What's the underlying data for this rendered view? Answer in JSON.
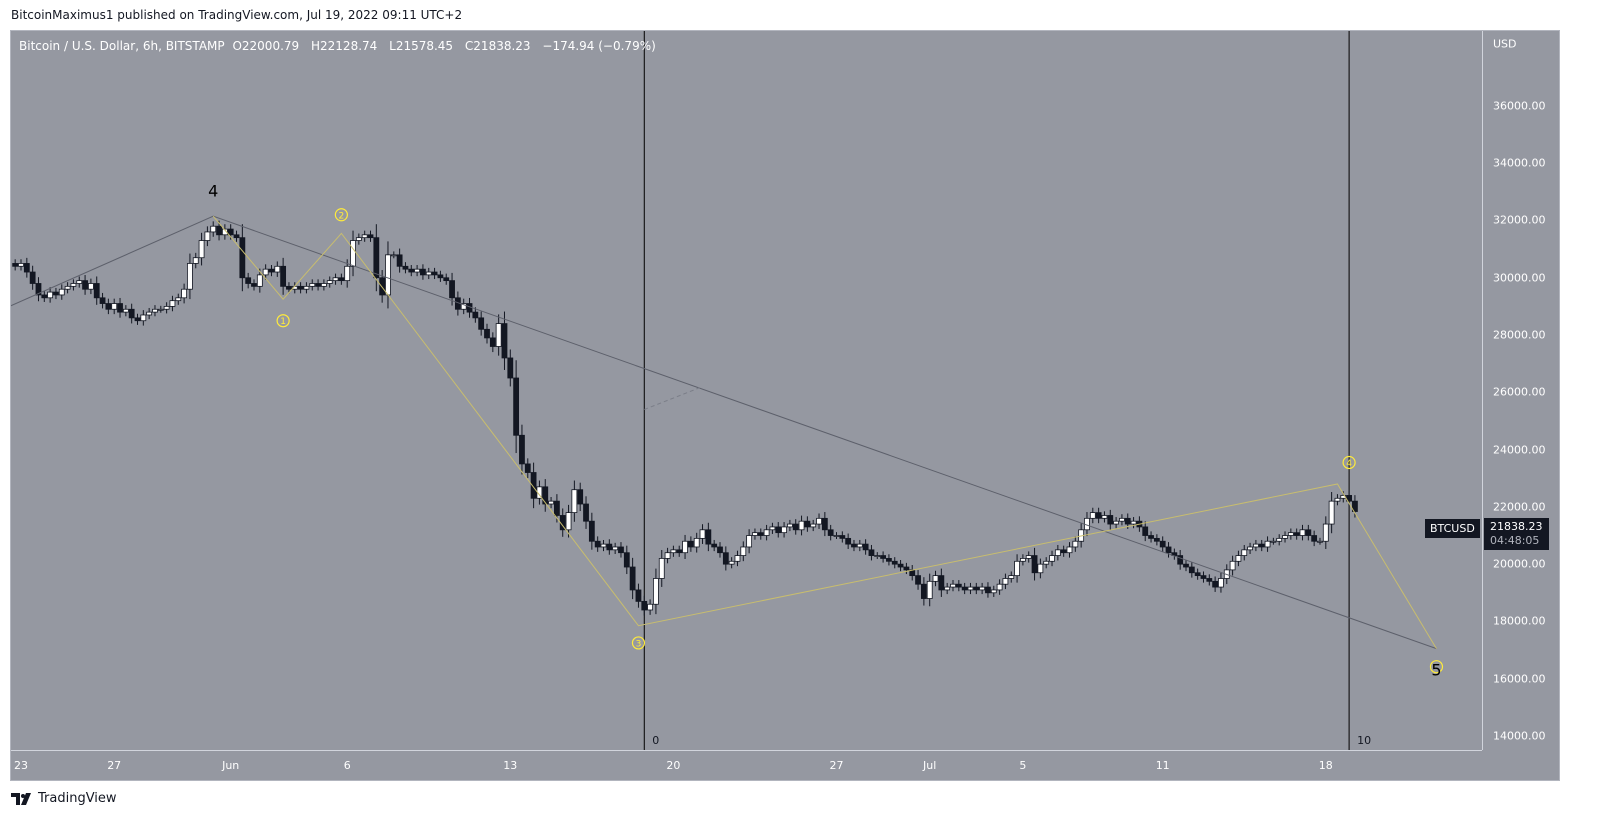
{
  "publisher_line": "BitcoinMaximus1 published on TradingView.com, Jul 19, 2022 09:11 UTC+2",
  "legend": {
    "symbol": "Bitcoin / U.S. Dollar, 6h, BITSTAMP",
    "o_label": "O",
    "open": "22000.79",
    "h_label": "H",
    "high": "22128.74",
    "l_label": "L",
    "low": "21578.45",
    "c_label": "C",
    "close": "21838.23",
    "change": "−174.94 (−0.79%)"
  },
  "price_axis": {
    "currency": "USD",
    "ticks": [
      "36000.00",
      "34000.00",
      "32000.00",
      "30000.00",
      "28000.00",
      "26000.00",
      "24000.00",
      "22000.00",
      "20000.00",
      "18000.00",
      "16000.00",
      "14000.00"
    ]
  },
  "last_price": {
    "symbol": "BTCUSD",
    "price": "21838.23",
    "countdown": "04:48:05"
  },
  "footer": {
    "brand": "TradingView"
  },
  "colors": {
    "background": "#9598a1",
    "up": "#ffffff",
    "down": "#131722",
    "wave_line": "#c8bd6e",
    "trend_line": "#5d606b",
    "wave_label": "#ffeb3b"
  },
  "chart_data": {
    "type": "candlestick",
    "interval": "6h",
    "start": "2022-05-22 18:00",
    "ylim": [
      14000,
      37000
    ],
    "grid": false,
    "x_ticks": [
      {
        "label": "23",
        "date": "2022-05-23"
      },
      {
        "label": "27",
        "date": "2022-05-27"
      },
      {
        "label": "Jun",
        "date": "2022-06-01"
      },
      {
        "label": "6",
        "date": "2022-06-06"
      },
      {
        "label": "13",
        "date": "2022-06-13"
      },
      {
        "label": "20",
        "date": "2022-06-20"
      },
      {
        "label": "27",
        "date": "2022-06-27"
      },
      {
        "label": "Jul",
        "date": "2022-07-01"
      },
      {
        "label": "5",
        "date": "2022-07-05"
      },
      {
        "label": "11",
        "date": "2022-07-11"
      },
      {
        "label": "18",
        "date": "2022-07-18"
      }
    ],
    "closes": [
      30400,
      30500,
      30200,
      29800,
      29400,
      29300,
      29500,
      29400,
      29600,
      29700,
      29800,
      29900,
      29600,
      29800,
      29300,
      29100,
      28900,
      29100,
      28800,
      28900,
      28600,
      28500,
      28700,
      28800,
      28900,
      28900,
      29000,
      29200,
      29300,
      29600,
      30500,
      30700,
      31300,
      31600,
      31800,
      31500,
      31700,
      31500,
      31400,
      30000,
      29800,
      29700,
      30100,
      30300,
      30200,
      30400,
      29700,
      29600,
      29700,
      29600,
      29700,
      29800,
      29700,
      29800,
      29900,
      30000,
      29900,
      30400,
      31300,
      31400,
      31500,
      31400,
      30000,
      29400,
      30800,
      30800,
      30400,
      30300,
      30200,
      30300,
      30100,
      30200,
      30100,
      30000,
      29900,
      29300,
      28900,
      29100,
      28800,
      28600,
      28200,
      27900,
      27600,
      28400,
      27200,
      26500,
      24500,
      23500,
      23200,
      22300,
      22700,
      22100,
      22200,
      21700,
      21200,
      21800,
      22600,
      22100,
      21500,
      20800,
      20600,
      20700,
      20500,
      20600,
      20400,
      19900,
      19100,
      18700,
      18400,
      18600,
      19500,
      20200,
      20400,
      20500,
      20400,
      20800,
      20600,
      20900,
      21200,
      20700,
      20600,
      20400,
      20000,
      20100,
      20300,
      20600,
      21000,
      21100,
      21000,
      21200,
      21300,
      21100,
      21300,
      21400,
      21200,
      21500,
      21300,
      21400,
      21600,
      21200,
      21000,
      21000,
      20900,
      20700,
      20600,
      20700,
      20500,
      20300,
      20300,
      20200,
      20100,
      20000,
      19900,
      19800,
      19600,
      19300,
      18800,
      19400,
      19600,
      19100,
      19200,
      19300,
      19200,
      19100,
      19200,
      19100,
      19200,
      19000,
      19100,
      19300,
      19500,
      19600,
      20100,
      20200,
      20300,
      19700,
      20000,
      20100,
      20300,
      20500,
      20400,
      20600,
      20800,
      21200,
      21600,
      21800,
      21600,
      21700,
      21400,
      21500,
      21600,
      21400,
      21500,
      21300,
      21000,
      20900,
      20800,
      20600,
      20400,
      20300,
      20000,
      19900,
      19700,
      19600,
      19500,
      19400,
      19200,
      19500,
      19800,
      20100,
      20300,
      20500,
      20600,
      20700,
      20600,
      20800,
      20800,
      20900,
      21000,
      21100,
      21000,
      21200,
      21000,
      20800,
      20800,
      21400,
      22200,
      22300,
      22400,
      22200,
      21838.23
    ],
    "trend_line": [
      {
        "date": "2022-05-22 12:00",
        "price": 29000
      },
      {
        "date": "2022-05-31 06:00",
        "price": 32150
      },
      {
        "date": "2022-07-22 18:00",
        "price": 17050
      }
    ],
    "wave_line": [
      {
        "date": "2022-05-31 06:00",
        "price": 32150
      },
      {
        "date": "2022-06-03 06:00",
        "price": 29250
      },
      {
        "date": "2022-06-05 18:00",
        "price": 31550
      },
      {
        "date": "2022-06-18 12:00",
        "price": 17850
      },
      {
        "date": "2022-07-18 12:00",
        "price": 22800
      },
      {
        "date": "2022-07-22 18:00",
        "price": 17050
      }
    ],
    "labels": [
      {
        "text": "4",
        "date": "2022-05-31 06:00",
        "price": 33050,
        "style": "plain"
      },
      {
        "text": "1",
        "date": "2022-06-03 06:00",
        "price": 28500,
        "style": "circled"
      },
      {
        "text": "2",
        "date": "2022-06-05 18:00",
        "price": 32200,
        "style": "circled"
      },
      {
        "text": "3",
        "date": "2022-06-18 12:00",
        "price": 17250,
        "style": "circled"
      },
      {
        "text": "4",
        "date": "2022-07-19 00:00",
        "price": 23550,
        "style": "circled"
      },
      {
        "text": "5",
        "date": "2022-07-22 18:00",
        "price": 16420,
        "style": "circled-plain"
      }
    ],
    "vertical_lines": [
      {
        "date": "2022-06-18 18:00",
        "label": "0"
      },
      {
        "date": "2022-07-19 00:00",
        "label": "10"
      }
    ],
    "dashed_segment": [
      {
        "date": "2022-06-18 18:00",
        "price": 25400
      },
      {
        "date": "2022-06-21 06:00",
        "price": 26200
      }
    ]
  }
}
